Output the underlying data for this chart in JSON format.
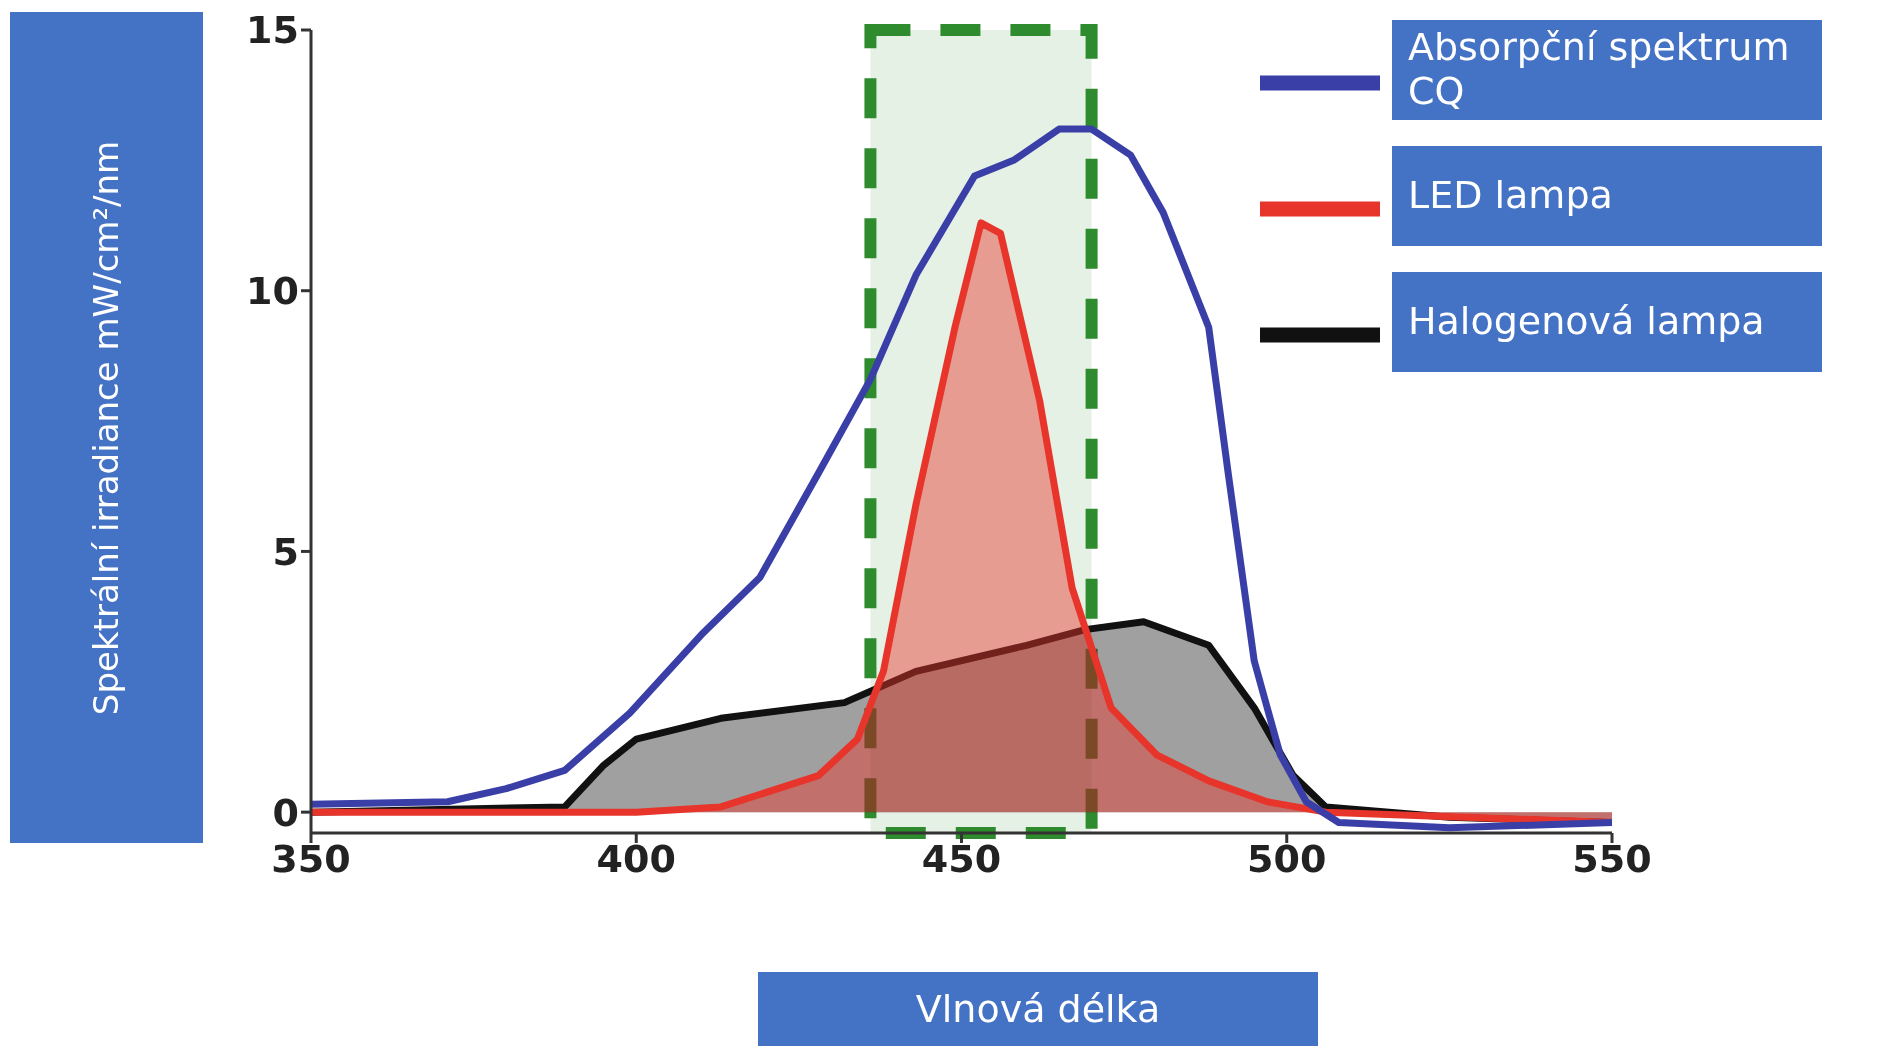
{
  "chart_data": {
    "type": "line",
    "xlabel": "Vlnová délka",
    "ylabel": "Spektrální irradiance mW/cm²/nm",
    "xlim": [
      350,
      550
    ],
    "xticks": [
      350,
      400,
      450,
      500,
      550
    ],
    "ylim": [
      -0.4,
      15
    ],
    "yticks": [
      0,
      5,
      10,
      15
    ],
    "grid": false,
    "legend": "right",
    "marker": "none",
    "line_style": "solid",
    "bands": [
      {
        "axis": "x",
        "from": 436,
        "to": 470,
        "color": "#2e8b2e"
      }
    ],
    "series": [
      {
        "name": "Absorpční spektrum CQ",
        "color": "#3a3fa8",
        "x": [
          350,
          371,
          380,
          389,
          399,
          410,
          419,
          428,
          436,
          443,
          452,
          458,
          465,
          470,
          476,
          481,
          488,
          491,
          495,
          499,
          503,
          508,
          525,
          550
        ],
        "values": [
          0.15,
          0.2,
          0.45,
          0.8,
          1.9,
          3.4,
          4.5,
          6.5,
          8.3,
          10.3,
          12.2,
          12.5,
          13.1,
          13.1,
          12.6,
          11.5,
          9.3,
          6.5,
          2.9,
          1.1,
          0.2,
          -0.2,
          -0.3,
          -0.2
        ]
      },
      {
        "name": "LED lampa",
        "type": "area",
        "color": "#e8352c",
        "x": [
          350,
          400,
          413,
          428,
          434,
          438,
          443,
          449,
          453,
          456,
          462,
          467,
          473,
          480,
          488,
          497,
          506,
          550
        ],
        "values": [
          0,
          0,
          0.1,
          0.7,
          1.4,
          2.7,
          5.9,
          9.3,
          11.3,
          11.1,
          7.9,
          4.3,
          2,
          1.1,
          0.6,
          0.2,
          0,
          -0.2
        ]
      },
      {
        "name": "Halogenová lampa",
        "type": "area",
        "color": "#111111",
        "x": [
          350,
          389,
          395,
          400,
          413,
          432,
          443,
          460,
          469,
          478,
          488,
          495,
          501,
          506,
          525,
          550
        ],
        "values": [
          0,
          0.1,
          0.9,
          1.4,
          1.8,
          2.1,
          2.7,
          3.2,
          3.5,
          3.65,
          3.2,
          2,
          0.7,
          0.1,
          -0.1,
          -0.2
        ]
      }
    ]
  }
}
